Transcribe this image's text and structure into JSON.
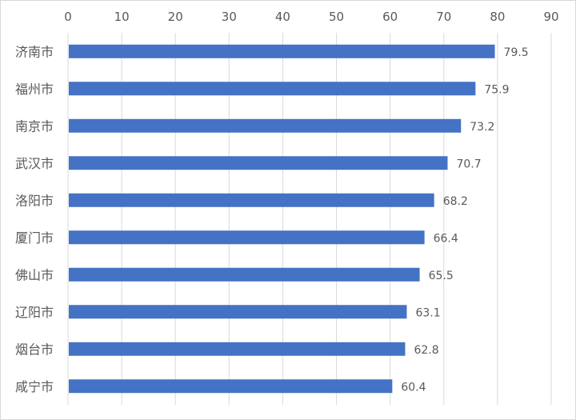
{
  "chart_data": {
    "type": "bar",
    "orientation": "horizontal",
    "categories": [
      "济南市",
      "福州市",
      "南京市",
      "武汉市",
      "洛阳市",
      "厦门市",
      "佛山市",
      "辽阳市",
      "烟台市",
      "咸宁市"
    ],
    "values": [
      79.5,
      75.9,
      73.2,
      70.7,
      68.2,
      66.4,
      65.5,
      63.1,
      62.8,
      60.4
    ],
    "xlim": [
      0,
      90
    ],
    "x_ticks": [
      0,
      10,
      20,
      30,
      40,
      50,
      60,
      70,
      80,
      90
    ],
    "x_axis_position": "top",
    "grid": true,
    "data_labels": true,
    "bar_color": "#4472C4",
    "title": "",
    "xlabel": "",
    "ylabel": ""
  }
}
